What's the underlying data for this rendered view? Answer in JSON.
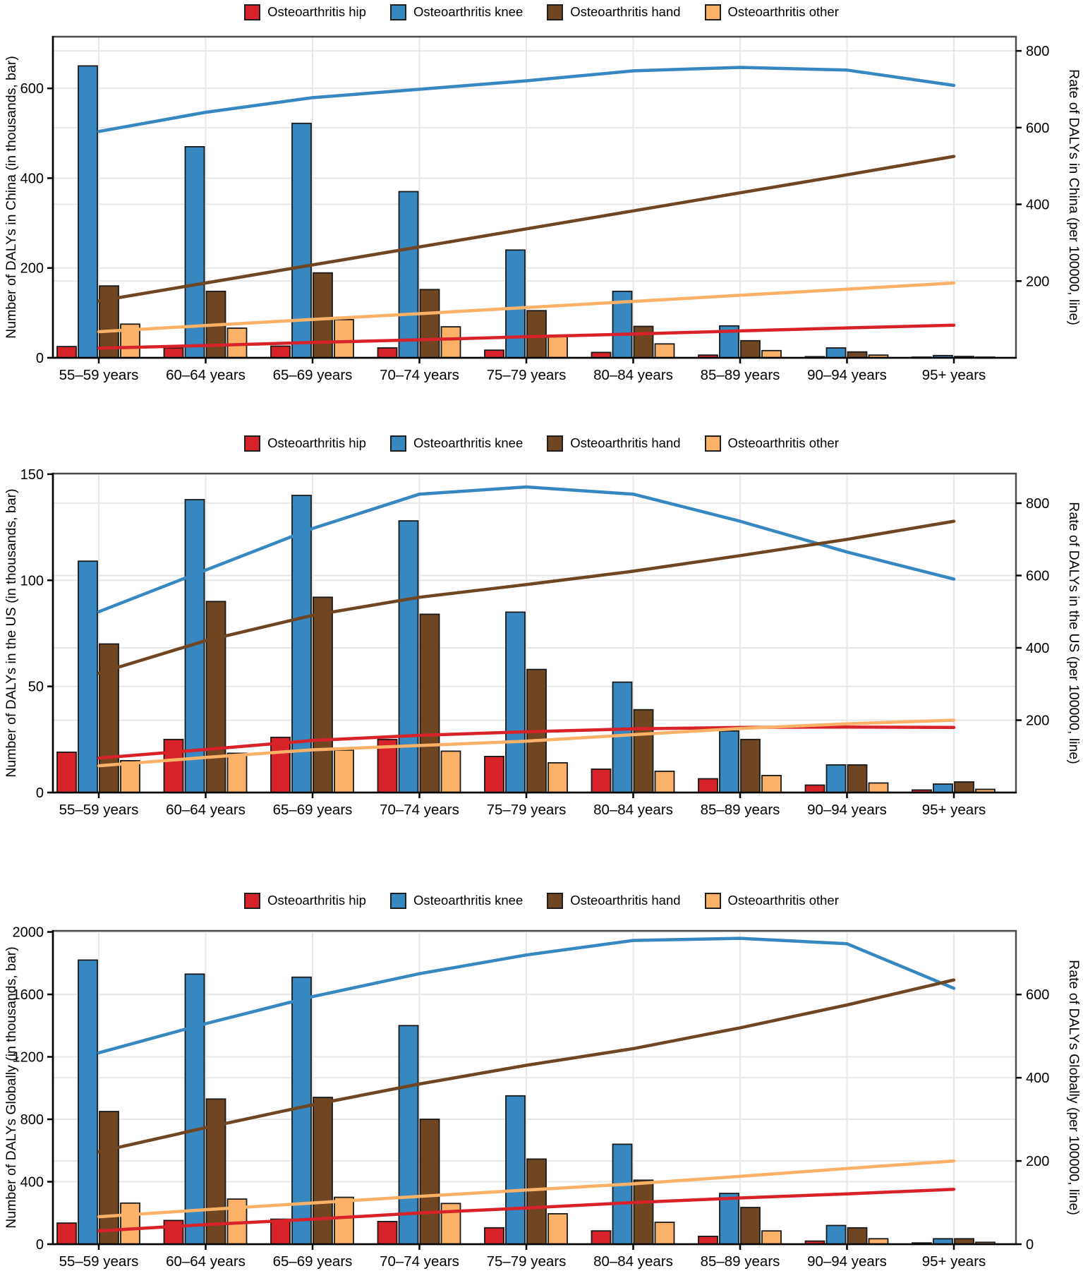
{
  "legend": {
    "items": [
      {
        "key": "hip",
        "label": "Osteoarthritis hip",
        "color": "#D7222A"
      },
      {
        "key": "knee",
        "label": "Osteoarthritis knee",
        "color": "#3787C0"
      },
      {
        "key": "hand",
        "label": "Osteoarthritis hand",
        "color": "#6F4522"
      },
      {
        "key": "other",
        "label": "Osteoarthritis other",
        "color": "#FBB268"
      }
    ]
  },
  "chart_data": [
    {
      "id": "china",
      "type": "bar+line",
      "categories": [
        "55–59 years",
        "60–64 years",
        "65–69 years",
        "70–74 years",
        "75–79 years",
        "80–84 years",
        "85–89 years",
        "90–94 years",
        "95+ years"
      ],
      "left_axis": {
        "title": "Number of DALYs in China (in thousands, bar)",
        "ticks": [
          0,
          200,
          400,
          600
        ],
        "max": 715
      },
      "right_axis": {
        "title": "Rate of DALYs in China (per 100000, line)",
        "ticks": [
          200,
          400,
          600,
          800
        ],
        "max": 837
      },
      "bars": {
        "hip": [
          25,
          22,
          26,
          22,
          17,
          12,
          6,
          2.5,
          1
        ],
        "knee": [
          650,
          470,
          522,
          370,
          240,
          148,
          71,
          22,
          5
        ],
        "hand": [
          160,
          148,
          189,
          152,
          105,
          70,
          38,
          13,
          3
        ],
        "other": [
          75,
          66,
          85,
          69,
          47,
          31,
          16,
          6,
          1.5
        ]
      },
      "lines": {
        "hip": [
          25,
          32,
          40,
          47,
          55,
          62,
          70,
          78,
          85
        ],
        "knee": [
          590,
          640,
          678,
          700,
          722,
          748,
          757,
          750,
          710
        ],
        "hand": [
          148,
          195,
          242,
          289,
          336,
          383,
          430,
          477,
          525
        ],
        "other": [
          68,
          84,
          100,
          115,
          131,
          147,
          163,
          179,
          195
        ]
      }
    },
    {
      "id": "us",
      "type": "bar+line",
      "categories": [
        "55–59 years",
        "60–64 years",
        "65–69 years",
        "70–74 years",
        "75–79 years",
        "80–84 years",
        "85–89 years",
        "90–94 years",
        "95+ years"
      ],
      "left_axis": {
        "title": "Number of DALYs in the US (in thousands, bar)",
        "ticks": [
          0,
          50,
          100,
          150
        ],
        "max": 150.3
      },
      "right_axis": {
        "title": "Rate of DALYs in the US (per 100000, line)",
        "ticks": [
          200,
          400,
          600,
          800
        ],
        "max": 882
      },
      "bars": {
        "hip": [
          19,
          25,
          26,
          25,
          17,
          11,
          6.5,
          3.5,
          1.2
        ],
        "knee": [
          109,
          138,
          140,
          128,
          85,
          52,
          29,
          13,
          4
        ],
        "hand": [
          70,
          90,
          92,
          84,
          58,
          39,
          25,
          13,
          5
        ],
        "other": [
          15,
          18.5,
          20,
          19.5,
          14,
          10,
          8,
          4.5,
          1.5
        ]
      },
      "lines": {
        "hip": [
          95,
          119,
          144,
          158,
          168,
          176,
          180,
          181,
          180
        ],
        "knee": [
          500,
          615,
          730,
          825,
          845,
          825,
          750,
          665,
          590
        ],
        "hand": [
          330,
          420,
          490,
          540,
          575,
          612,
          655,
          700,
          750
        ],
        "other": [
          74,
          97,
          118,
          130,
          142,
          160,
          177,
          190,
          200
        ]
      }
    },
    {
      "id": "global",
      "type": "bar+line",
      "categories": [
        "55–59 years",
        "60–64 years",
        "65–69 years",
        "70–74 years",
        "75–79 years",
        "80–84 years",
        "85–89 years",
        "90–94 years",
        "95+ years"
      ],
      "left_axis": {
        "title": "Number of DALYs Globally (in thousands, bar)",
        "ticks": [
          0,
          400,
          800,
          1200,
          1600,
          2000
        ],
        "max": 2007
      },
      "right_axis": {
        "title": "Rate of DALYs Globally (per 100000, line)",
        "ticks": [
          0,
          200,
          400,
          600
        ],
        "max": 753
      },
      "bars": {
        "hip": [
          135,
          152,
          160,
          145,
          105,
          85,
          50,
          20,
          8
        ],
        "knee": [
          1820,
          1730,
          1710,
          1400,
          950,
          640,
          325,
          120,
          35
        ],
        "hand": [
          850,
          930,
          940,
          800,
          545,
          410,
          235,
          105,
          35
        ],
        "other": [
          263,
          289,
          300,
          261,
          195,
          140,
          85,
          35,
          12
        ]
      },
      "lines": {
        "hip": [
          32,
          47,
          60,
          75,
          87,
          100,
          111,
          121,
          132
        ],
        "knee": [
          460,
          530,
          595,
          650,
          695,
          730,
          735,
          722,
          615
        ],
        "hand": [
          222,
          280,
          335,
          385,
          430,
          470,
          520,
          575,
          635
        ],
        "other": [
          66,
          83,
          99,
          115,
          130,
          145,
          163,
          182,
          200
        ]
      }
    }
  ],
  "style": {
    "grid_color": "#E7E7E7",
    "bar_border_color": "#1A1A1A",
    "panel_border_color": "#4D4D4D",
    "axis_color": "#000000"
  }
}
